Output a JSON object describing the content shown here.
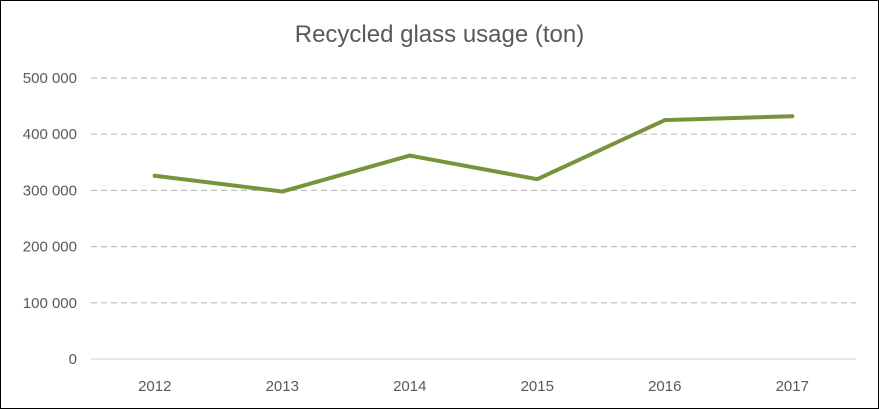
{
  "chart_data": {
    "type": "line",
    "title": "Recycled glass usage (ton)",
    "categories": [
      "2012",
      "2013",
      "2014",
      "2015",
      "2016",
      "2017"
    ],
    "series": [
      {
        "values": [
          326000,
          298000,
          362000,
          320000,
          425000,
          432000
        ],
        "color": "#77933c"
      }
    ],
    "ylim": [
      0,
      500000
    ],
    "yticks": [
      0,
      100000,
      200000,
      300000,
      400000,
      500000
    ],
    "ytick_labels": [
      "0",
      "100 000",
      "200 000",
      "300 000",
      "400 000",
      "500 000"
    ],
    "grid": true,
    "grid_color": "#bfbfbf",
    "axis_color": "#d9d9d9",
    "text_color": "#595959",
    "legend": "none"
  }
}
